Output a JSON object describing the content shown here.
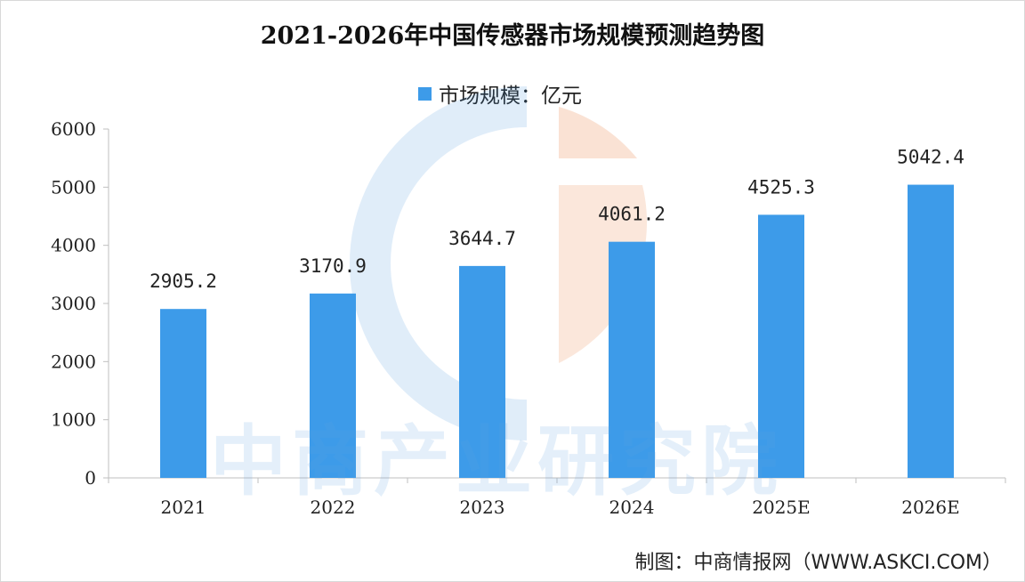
{
  "chart_data": {
    "type": "bar",
    "title": "2021-2026年中国传感器市场规模预测趋势图",
    "categories": [
      "2021",
      "2022",
      "2023",
      "2024",
      "2025E",
      "2026E"
    ],
    "series": [
      {
        "name": "市场规模：亿元",
        "values": [
          2905.2,
          3170.9,
          3644.7,
          4061.2,
          4525.3,
          5042.4
        ]
      }
    ],
    "data_labels": [
      "2905.2",
      "3170.9",
      "3644.7",
      "4061.2",
      "4525.3",
      "5042.4"
    ],
    "y_ticks": [
      "0",
      "1000",
      "2000",
      "3000",
      "4000",
      "5000",
      "6000"
    ],
    "ylim": [
      0,
      6000
    ],
    "xlabel": "",
    "ylabel": "",
    "grid": false,
    "legend_position": "top-center",
    "bar_color": "#3d9be9"
  },
  "watermark": "中商产业研究院",
  "source": "制图：中商情报网（WWW.ASKCI.COM）"
}
